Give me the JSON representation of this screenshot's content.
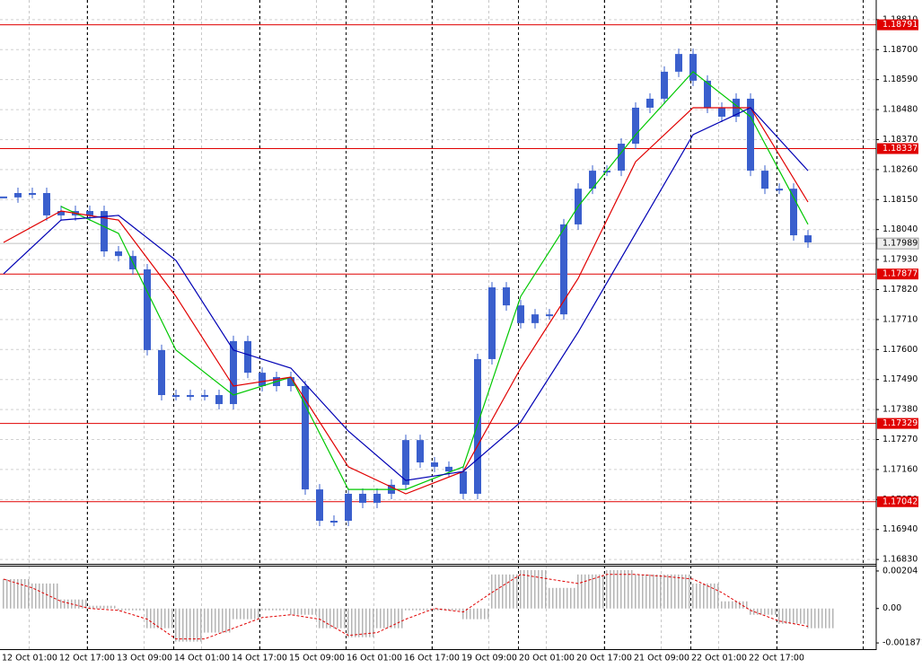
{
  "chart_data": [
    {
      "type": "price",
      "ylim": [
        1.16814,
        1.18882
      ],
      "yticks": [
        {
          "value": 1.1881,
          "label": "1.18810"
        },
        {
          "value": 1.187,
          "label": "1.18700"
        },
        {
          "value": 1.1859,
          "label": "1.18590"
        },
        {
          "value": 1.1848,
          "label": "1.18480"
        },
        {
          "value": 1.1837,
          "label": "1.18370"
        },
        {
          "value": 1.1826,
          "label": "1.18260"
        },
        {
          "value": 1.1815,
          "label": "1.18150"
        },
        {
          "value": 1.1804,
          "label": "1.18040"
        },
        {
          "value": 1.1793,
          "label": "1.17930"
        },
        {
          "value": 1.1782,
          "label": "1.17820"
        },
        {
          "value": 1.1771,
          "label": "1.17710"
        },
        {
          "value": 1.176,
          "label": "1.17600"
        },
        {
          "value": 1.1749,
          "label": "1.17490"
        },
        {
          "value": 1.1738,
          "label": "1.17380"
        },
        {
          "value": 1.1727,
          "label": "1.17270"
        },
        {
          "value": 1.1716,
          "label": "1.17160"
        },
        {
          "value": 1.1705,
          "label": "1.17050"
        },
        {
          "value": 1.1694,
          "label": "1.16940"
        },
        {
          "value": 1.1683,
          "label": "1.16830"
        }
      ],
      "x_labels": [
        "12 Oct 01:00",
        "12 Oct 17:00",
        "13 Oct 09:00",
        "14 Oct 01:00",
        "14 Oct 17:00",
        "15 Oct 09:00",
        "16 Oct 01:00",
        "16 Oct 17:00",
        "19 Oct 09:00",
        "20 Oct 01:00",
        "20 Oct 17:00",
        "21 Oct 09:00",
        "22 Oct 01:00",
        "22 Oct 17:00"
      ],
      "levels": [
        1.18791,
        1.18337,
        1.17877,
        1.17329,
        1.17042
      ],
      "level_color": "#e00000",
      "current_price": 1.17989,
      "grid": true,
      "series": [
        {
          "color": "#3a5fcd",
          "values": [
            1.18158,
            1.18174,
            1.18174,
            1.18092,
            1.18108,
            1.18092,
            1.18108,
            1.1796,
            1.17943,
            1.17894,
            1.17598,
            1.17433,
            1.17433,
            1.17433,
            1.17433,
            1.174,
            1.17631,
            1.17515,
            1.17466,
            1.17499,
            1.17466,
            1.17087,
            1.16972,
            1.16972,
            1.17071,
            1.17038,
            1.17071,
            1.17104,
            1.17268,
            1.17186,
            1.1717,
            1.17153,
            1.17071,
            1.17565,
            1.17828,
            1.17762,
            1.17697,
            1.17729,
            1.17729,
            1.18059,
            1.1819,
            1.18256,
            1.18256,
            1.18355,
            1.18487,
            1.1852,
            1.18619,
            1.18684,
            1.18586,
            1.18487,
            1.18454,
            1.1852,
            1.18256,
            1.1819,
            1.1819,
            1.18019,
            1.17993
          ]
        },
        {
          "color": "#00c800",
          "values": [
            null,
            1.18125,
            1.18026,
            1.17598,
            1.17433,
            1.17499,
            1.17087,
            1.17087,
            1.1717,
            1.17795,
            1.18125,
            1.18388,
            1.18619,
            1.18454,
            1.18059
          ]
        },
        {
          "color": "#e00000",
          "values": [
            1.17993,
            1.18108,
            1.18075,
            1.17795,
            1.17466,
            1.17499,
            1.1717,
            1.17071,
            1.17153,
            1.17532,
            1.17861,
            1.18289,
            1.18487,
            1.18487,
            1.18141
          ]
        },
        {
          "color": "#0000b4",
          "values": [
            1.17878,
            1.18075,
            1.18092,
            1.17927,
            1.17598,
            1.17532,
            1.17301,
            1.1712,
            1.17153,
            1.17334,
            1.17664,
            1.18026,
            1.18388,
            1.18487,
            1.18256
          ]
        }
      ]
    },
    {
      "type": "oscillator",
      "ylim": [
        -0.00216,
        0.00233
      ],
      "yticks": [
        0.00204,
        {
          "value": 0,
          "label": "0.00"
        },
        -0.001871
      ],
      "series": [
        {
          "color": "#b4b4b4",
          "values": [
            0.0016,
            0.00136,
            0.00049,
            0.00015,
            -0.0001,
            -0.00107,
            -0.0018,
            -0.00131,
            -0.00058,
            -0.0001,
            -0.00034,
            -0.00107,
            -0.00156,
            -0.00107,
            -0.0001,
            -0.0001,
            -0.00058,
            0.00185,
            0.00209,
            0.00112,
            0.00185,
            0.00209,
            0.00185,
            0.00185,
            0.00136,
            0.00039,
            -0.00034,
            -0.00083,
            -0.00107
          ]
        },
        {
          "color": "#e00000",
          "values": [
            0.0016,
            0.00112,
            0.00039,
            0,
            -0.0001,
            -0.00058,
            -0.00165,
            -0.00165,
            -0.00107,
            -0.00049,
            -0.00034,
            -0.00058,
            -0.00146,
            -0.00131,
            -0.00058,
            0,
            -0.00019,
            0.00087,
            0.00185,
            0.0016,
            0.00136,
            0.00185,
            0.00185,
            0.00175,
            0.0016,
            0.00087,
            -0.0001,
            -0.00068,
            -0.00097
          ]
        }
      ]
    }
  ]
}
